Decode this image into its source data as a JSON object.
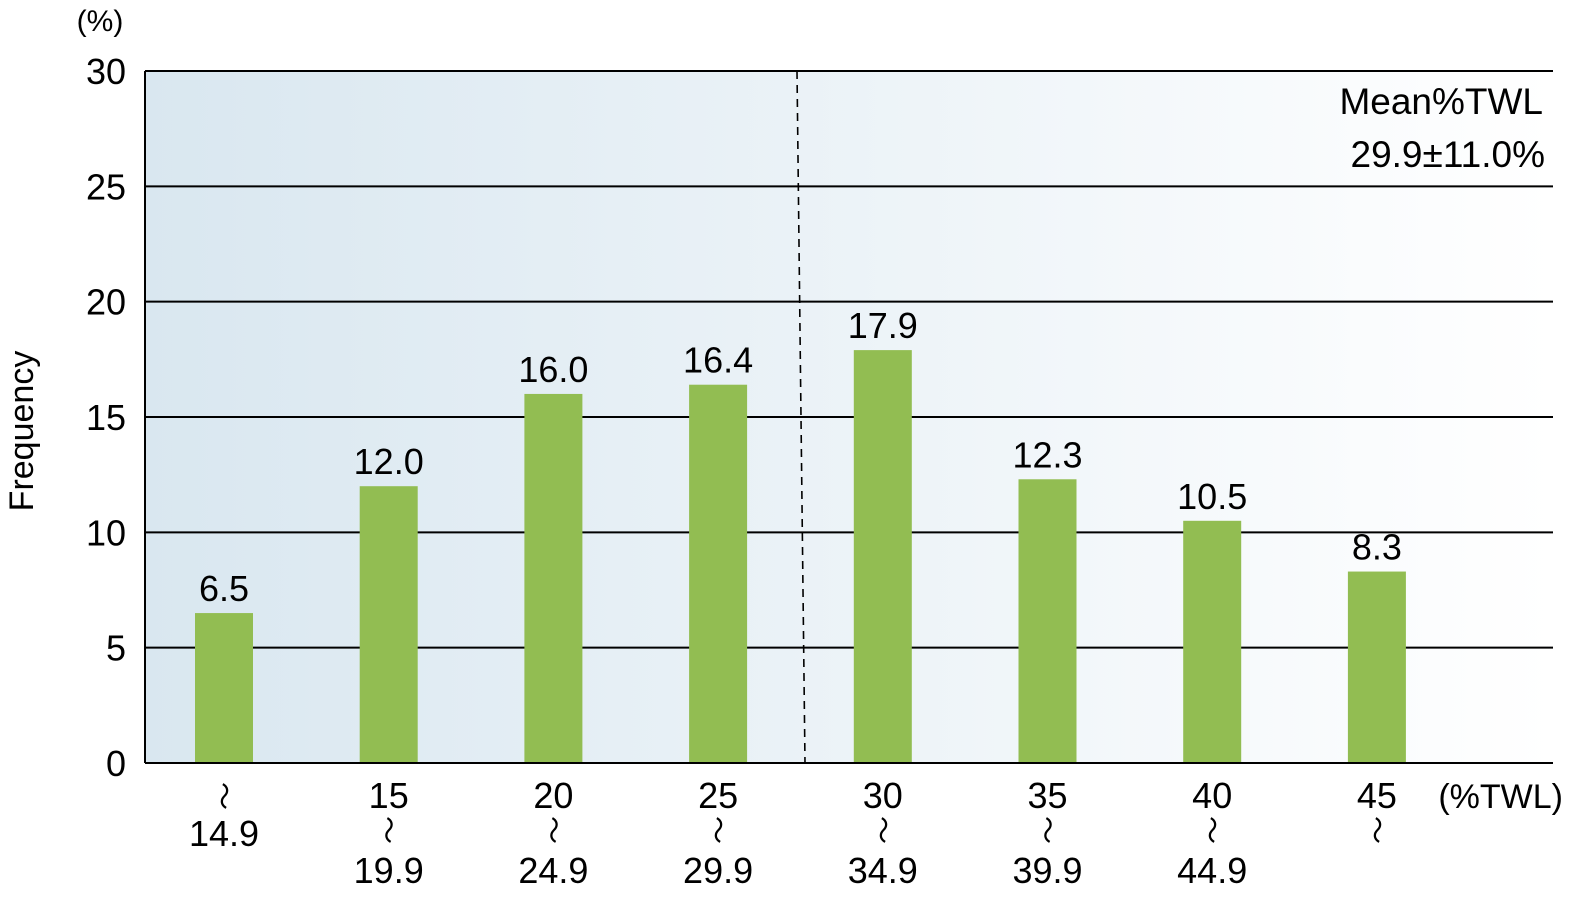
{
  "chart_data": {
    "type": "bar",
    "title": "",
    "ylabel": "Frequency",
    "yunit": "(%)",
    "xunit": "(%TWL)",
    "ylim": [
      0,
      30
    ],
    "yticks": [
      "0",
      "5",
      "10",
      "15",
      "20",
      "25",
      "30"
    ],
    "categories": [
      {
        "low": "",
        "high": "14.9"
      },
      {
        "low": "15",
        "high": "19.9"
      },
      {
        "low": "20",
        "high": "24.9"
      },
      {
        "low": "25",
        "high": "29.9"
      },
      {
        "low": "30",
        "high": "34.9"
      },
      {
        "low": "35",
        "high": "39.9"
      },
      {
        "low": "40",
        "high": "44.9"
      },
      {
        "low": "45",
        "high": ""
      }
    ],
    "range_mark": "〜",
    "values": [
      6.5,
      12.0,
      16.0,
      16.4,
      17.9,
      12.3,
      10.5,
      8.3
    ],
    "value_labels": [
      "6.5",
      "12.0",
      "16.0",
      "16.4",
      "17.9",
      "12.3",
      "10.5",
      "8.3"
    ],
    "mean_line_x": 29.9,
    "annotation": [
      "Mean%TWL",
      "29.9±11.0%"
    ],
    "grid": true,
    "bar_color": "#92bd52",
    "background_gradient": [
      "#d9e7f0",
      "#ffffff"
    ]
  }
}
